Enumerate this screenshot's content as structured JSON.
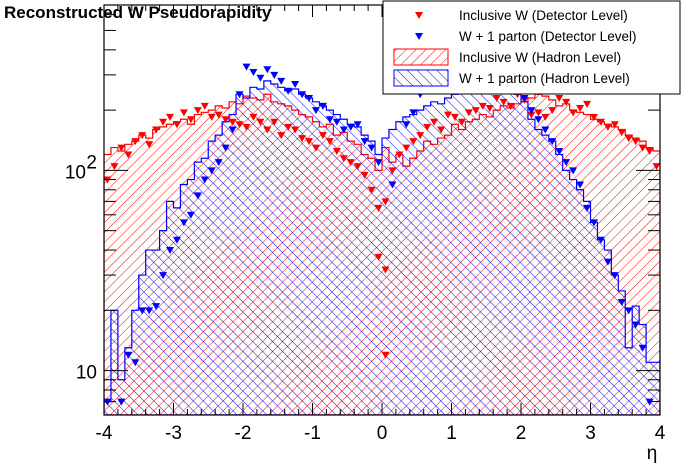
{
  "chart_data": {
    "type": "histogram",
    "title": "Reconstructed W Pseudorapidity",
    "xlabel": "η",
    "ylabel": "",
    "xlim": [
      -4,
      4
    ],
    "ylim": [
      6,
      670
    ],
    "yscale": "log",
    "x_ticks": [
      "-4",
      "-3",
      "-2",
      "-1",
      "0",
      "1",
      "2",
      "3",
      "4"
    ],
    "y_ticks": [
      {
        "value": 10,
        "label": "10"
      },
      {
        "value": 100,
        "label": "10",
        "sup": "2"
      }
    ],
    "bin_edges_start": -4,
    "bin_width": 0.1,
    "legend_position": "top-right",
    "series": [
      {
        "name": "Inclusive W (Hadron Level)",
        "style": "hist-hatched",
        "color": "#ff0000",
        "values": [
          120,
          130,
          125,
          135,
          140,
          150,
          145,
          160,
          165,
          170,
          175,
          180,
          170,
          190,
          195,
          200,
          210,
          205,
          220,
          215,
          235,
          230,
          225,
          240,
          220,
          215,
          210,
          200,
          190,
          185,
          175,
          165,
          170,
          150,
          155,
          140,
          135,
          120,
          115,
          100,
          130,
          110,
          120,
          105,
          115,
          125,
          140,
          135,
          145,
          150,
          170,
          160,
          175,
          180,
          190,
          185,
          200,
          210,
          205,
          215,
          220,
          230,
          240,
          235,
          225,
          210,
          215,
          200,
          195,
          190,
          180,
          175,
          170,
          165,
          160,
          150,
          145,
          140,
          130,
          125
        ]
      },
      {
        "name": "W + 1 parton (Hadron Level)",
        "style": "hist-hatched",
        "color": "#0000ff",
        "values": [
          7,
          20,
          9,
          13,
          20,
          30,
          40,
          40,
          50,
          70,
          65,
          85,
          90,
          110,
          115,
          140,
          150,
          175,
          190,
          240,
          230,
          260,
          255,
          280,
          270,
          260,
          250,
          255,
          240,
          230,
          220,
          210,
          200,
          190,
          180,
          170,
          165,
          150,
          140,
          120,
          145,
          160,
          175,
          185,
          190,
          200,
          210,
          220,
          215,
          230,
          240,
          250,
          260,
          270,
          280,
          290,
          300,
          280,
          260,
          240,
          220,
          180,
          160,
          150,
          140,
          120,
          100,
          90,
          80,
          70,
          55,
          45,
          40,
          30,
          25,
          13,
          21,
          17,
          11,
          11
        ]
      },
      {
        "name": "Inclusive W (Detector Level)",
        "style": "markers",
        "color": "#ff0000",
        "x": [
          -3.95,
          -3.85,
          -3.75,
          -3.65,
          -3.55,
          -3.45,
          -3.35,
          -3.25,
          -3.15,
          -3.05,
          -2.95,
          -2.85,
          -2.75,
          -2.65,
          -2.55,
          -2.45,
          -2.35,
          -2.25,
          -2.15,
          -2.05,
          -1.95,
          -1.85,
          -1.75,
          -1.65,
          -1.55,
          -1.45,
          -1.35,
          -1.25,
          -1.15,
          -1.05,
          -0.95,
          -0.85,
          -0.75,
          -0.65,
          -0.55,
          -0.45,
          -0.35,
          -0.25,
          -0.15,
          -0.05,
          0.05,
          0.15,
          0.25,
          0.35,
          0.45,
          0.55,
          0.65,
          0.75,
          0.85,
          0.95,
          1.05,
          1.15,
          1.25,
          1.35,
          1.45,
          1.55,
          1.65,
          1.75,
          1.85,
          1.95,
          2.05,
          2.15,
          2.25,
          2.35,
          2.45,
          2.55,
          2.65,
          2.75,
          2.85,
          2.95,
          3.05,
          3.15,
          3.25,
          3.35,
          3.45,
          3.55,
          3.65,
          3.75,
          3.85,
          3.95,
          -0.05,
          0.05,
          0.05
        ],
        "values": [
          90,
          105,
          130,
          120,
          140,
          150,
          135,
          160,
          175,
          185,
          170,
          195,
          180,
          200,
          210,
          185,
          190,
          180,
          175,
          170,
          165,
          185,
          175,
          160,
          175,
          150,
          165,
          160,
          145,
          140,
          130,
          150,
          140,
          125,
          115,
          110,
          105,
          95,
          80,
          65,
          70,
          100,
          120,
          130,
          140,
          150,
          165,
          175,
          160,
          190,
          185,
          175,
          195,
          200,
          210,
          205,
          230,
          220,
          210,
          240,
          225,
          190,
          195,
          185,
          200,
          230,
          220,
          195,
          205,
          215,
          185,
          175,
          165,
          170,
          155,
          145,
          140,
          130,
          125,
          105,
          37,
          32,
          12
        ]
      },
      {
        "name": "W + 1 parton (Detector Level)",
        "style": "markers",
        "color": "#0000ff",
        "x": [
          -3.95,
          -3.75,
          -3.65,
          -3.55,
          -3.45,
          -3.35,
          -3.25,
          -3.15,
          -3.05,
          -2.95,
          -2.85,
          -2.75,
          -2.65,
          -2.55,
          -2.45,
          -2.35,
          -2.25,
          -2.15,
          -2.05,
          -1.95,
          -1.85,
          -1.75,
          -1.65,
          -1.55,
          -1.45,
          -1.35,
          -1.25,
          -1.15,
          -1.05,
          -0.95,
          -0.85,
          -0.75,
          -0.65,
          -0.55,
          -0.45,
          -0.35,
          -0.25,
          -0.15,
          -0.05,
          0.15,
          0.35,
          0.45,
          0.55,
          0.65,
          0.75,
          0.85,
          0.95,
          1.05,
          1.15,
          1.25,
          1.35,
          1.45,
          1.55,
          1.65,
          1.75,
          1.85,
          1.95,
          2.05,
          2.15,
          2.25,
          2.35,
          2.45,
          2.55,
          2.65,
          2.75,
          2.85,
          2.95,
          3.05,
          3.15,
          3.25,
          3.35,
          3.45,
          3.55,
          3.65,
          3.75,
          3.85
        ],
        "values": [
          7,
          7,
          12,
          11,
          20,
          20,
          21,
          30,
          40,
          45,
          55,
          60,
          75,
          90,
          100,
          110,
          130,
          160,
          240,
          330,
          310,
          290,
          320,
          300,
          280,
          250,
          270,
          240,
          230,
          200,
          210,
          180,
          175,
          160,
          165,
          170,
          140,
          130,
          110,
          85,
          170,
          195,
          240,
          260,
          250,
          270,
          290,
          300,
          280,
          260,
          300,
          320,
          290,
          310,
          280,
          270,
          250,
          230,
          200,
          180,
          160,
          140,
          125,
          110,
          100,
          85,
          65,
          55,
          45,
          35,
          30,
          22,
          20,
          17,
          13,
          7
        ]
      }
    ]
  },
  "legend": {
    "items": [
      {
        "label": "Inclusive W (Detector Level)",
        "kind": "marker",
        "color": "#ff0000"
      },
      {
        "label": "W + 1 parton (Detector Level)",
        "kind": "marker",
        "color": "#0000ff"
      },
      {
        "label": "Inclusive W (Hadron Level)",
        "kind": "hatch",
        "color": "#ff0000"
      },
      {
        "label": "W + 1 parton (Hadron Level)",
        "kind": "hatch",
        "color": "#0000ff"
      }
    ]
  }
}
